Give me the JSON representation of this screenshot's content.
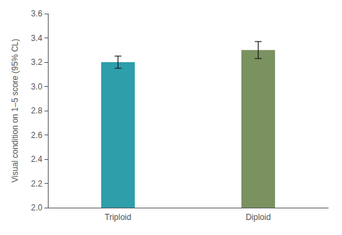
{
  "chart_data": {
    "type": "bar",
    "categories": [
      "Triploid",
      "Diploid"
    ],
    "values": [
      3.2,
      3.3
    ],
    "errors": [
      0.05,
      0.07
    ],
    "colors": [
      "#2d9eaa",
      "#7a9160"
    ],
    "ylabel": "Visual condition on 1–5 score (95% CL)",
    "ylim": [
      2.0,
      3.6
    ],
    "yticks": [
      {
        "value": 2.0,
        "label": "2.0"
      },
      2.2,
      2.4,
      2.6,
      2.8,
      {
        "value": 3.0,
        "label": "3.0"
      },
      3.2,
      3.4,
      3.6
    ],
    "grid": false
  }
}
